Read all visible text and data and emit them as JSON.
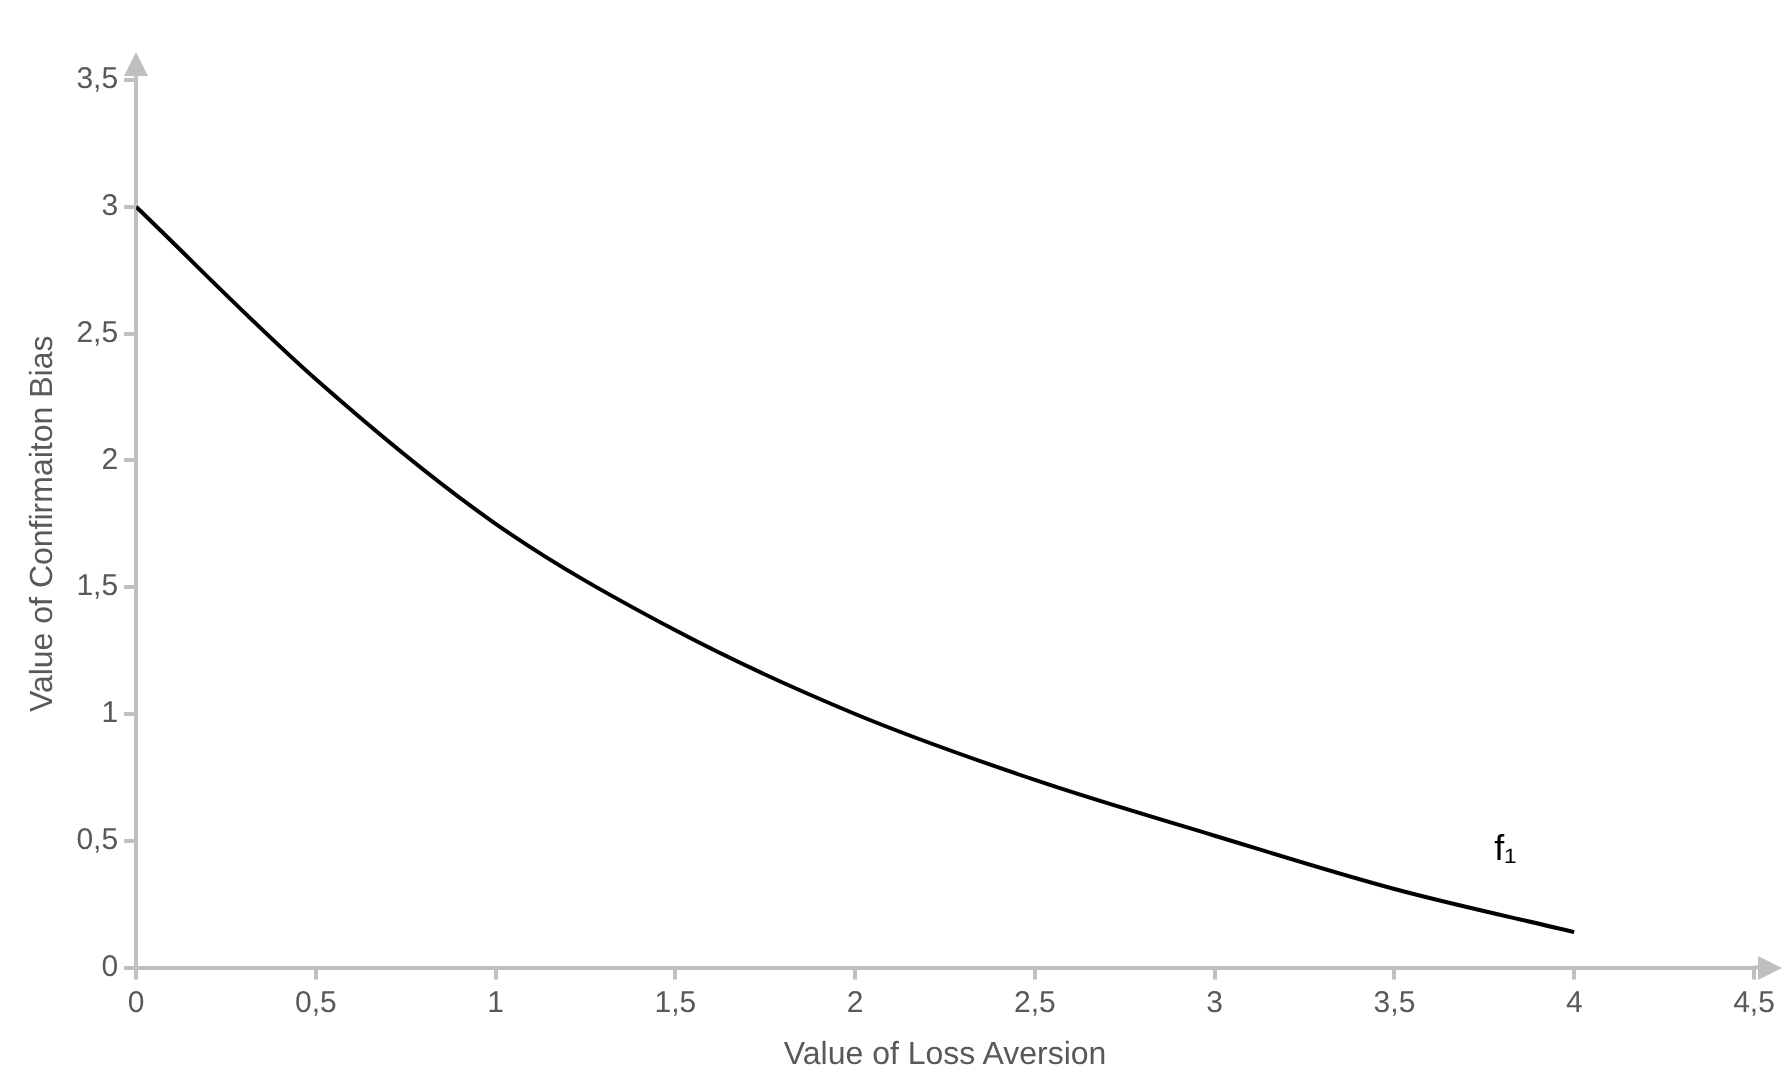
{
  "chart_data": {
    "type": "line",
    "xlabel": "Value of Loss Aversion",
    "ylabel": "Value of Confirmaiton Bias",
    "series": [
      {
        "color": "#000000",
        "x": [
          0,
          0.5,
          1,
          1.5,
          2,
          2.5,
          3,
          3.5,
          4
        ],
        "values": [
          3,
          2.32,
          1.75,
          1.33,
          1.0,
          0.74,
          0.52,
          0.31,
          0.14
        ]
      }
    ],
    "xlim": [
      0,
      4.5
    ],
    "xticks": [
      0,
      {
        "value": 0.5,
        "label": "0,5"
      },
      1,
      {
        "value": 1.5,
        "label": "1,5"
      },
      2,
      {
        "value": 2.5,
        "label": "2,5"
      },
      3,
      {
        "value": 3.5,
        "label": "3,5"
      },
      4,
      {
        "value": 4.5,
        "label": "4,5"
      }
    ],
    "ylim": [
      0,
      3.5
    ],
    "yticks": [
      0,
      {
        "value": 0.5,
        "label": "0,5"
      },
      1,
      {
        "value": 1.5,
        "label": "1,5"
      },
      2,
      {
        "value": 2.5,
        "label": "2,5"
      },
      3,
      {
        "value": 3.5,
        "label": "3,5"
      }
    ],
    "annotations": [
      "f₁"
    ],
    "grid": false,
    "legend": false,
    "marker": "none",
    "line_style": "solid"
  }
}
